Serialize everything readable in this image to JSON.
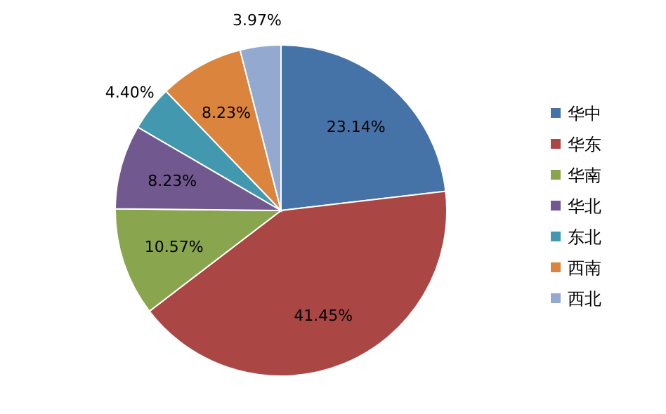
{
  "chart_data": {
    "type": "pie",
    "categories": [
      "华中",
      "华东",
      "华南",
      "华北",
      "东北",
      "西南",
      "西北"
    ],
    "values": [
      23.14,
      41.45,
      10.57,
      8.23,
      4.4,
      8.23,
      3.97
    ],
    "colors": [
      "#4572a7",
      "#aa4643",
      "#89a54e",
      "#71588f",
      "#4198af",
      "#db843d",
      "#93a9cf"
    ],
    "value_labels": [
      "23.14%",
      "41.45%",
      "10.57%",
      "8.23%",
      "4.40%",
      "8.23%",
      "3.97%"
    ],
    "legend": "right"
  }
}
